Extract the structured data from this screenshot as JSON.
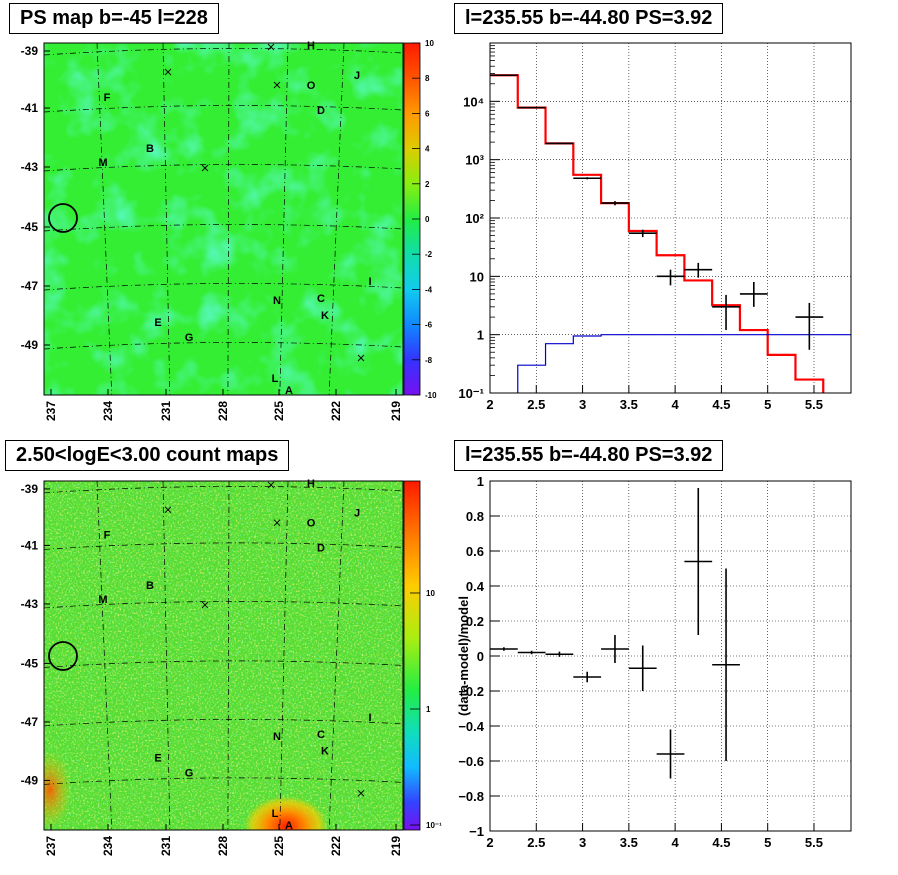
{
  "panels": {
    "ps_map_title": "PS map b=-45 l=228",
    "spectrum_title": "l=235.55 b=-44.80 PS=3.92",
    "count_map_title": "2.50<logE<3.00 count maps",
    "residual_title": "l=235.55 b=-44.80 PS=3.92"
  },
  "sky_map": {
    "lat_ticks": [
      "-39",
      "-41",
      "-43",
      "-45",
      "-47",
      "-49"
    ],
    "lon_ticks": [
      "237",
      "234",
      "231",
      "228",
      "225",
      "222",
      "219"
    ],
    "sources": [
      {
        "label": "H"
      },
      {
        "label": "J"
      },
      {
        "label": "O"
      },
      {
        "label": "D"
      },
      {
        "label": "F"
      },
      {
        "label": "B"
      },
      {
        "label": "M"
      },
      {
        "label": "I"
      },
      {
        "label": "N"
      },
      {
        "label": "C"
      },
      {
        "label": "K"
      },
      {
        "label": "E"
      },
      {
        "label": "G"
      },
      {
        "label": "L"
      },
      {
        "label": "A"
      }
    ],
    "crosses": 6,
    "colors": {
      "ps_background": "#33ee33",
      "counts_background": "#55dd33",
      "circle": "#000000"
    }
  },
  "ps_colorbar": {
    "ticks": [
      "10",
      "8",
      "6",
      "4",
      "2",
      "0",
      "-2",
      "-4",
      "-6",
      "-8",
      "-10"
    ]
  },
  "count_colorbar": {
    "ticks": [
      "10",
      "1",
      "10⁻¹"
    ]
  },
  "chart_data": [
    {
      "type": "line",
      "panel": "spectrum",
      "xlim": [
        2,
        5.9
      ],
      "ylim": [
        0.1,
        100000
      ],
      "yscale": "log",
      "grid": true,
      "x_ticks": [
        "2",
        "2.5",
        "3",
        "3.5",
        "4",
        "4.5",
        "5",
        "5.5"
      ],
      "y_ticks": [
        "10⁻¹",
        "1",
        "10",
        "10²",
        "10³",
        "10⁴"
      ],
      "series": [
        {
          "style": "data-points",
          "color": "#000000",
          "points": [
            {
              "x": 2.15,
              "y": 28000,
              "xerr": 0.15,
              "ylo": 27500,
              "yhi": 28500
            },
            {
              "x": 2.45,
              "y": 7800,
              "xerr": 0.15,
              "ylo": 7600,
              "yhi": 8000
            },
            {
              "x": 2.75,
              "y": 1900,
              "xerr": 0.15,
              "ylo": 1850,
              "yhi": 1950
            },
            {
              "x": 3.05,
              "y": 480,
              "xerr": 0.15,
              "ylo": 460,
              "yhi": 500
            },
            {
              "x": 3.35,
              "y": 180,
              "xerr": 0.15,
              "ylo": 165,
              "yhi": 195
            },
            {
              "x": 3.65,
              "y": 55,
              "xerr": 0.15,
              "ylo": 47,
              "yhi": 63
            },
            {
              "x": 3.95,
              "y": 10,
              "xerr": 0.15,
              "ylo": 7,
              "yhi": 13
            },
            {
              "x": 4.25,
              "y": 13,
              "xerr": 0.15,
              "ylo": 9.5,
              "yhi": 17
            },
            {
              "x": 4.55,
              "y": 3,
              "xerr": 0.15,
              "ylo": 1.2,
              "yhi": 4.8
            },
            {
              "x": 4.85,
              "y": 5,
              "xerr": 0.15,
              "ylo": 3,
              "yhi": 8
            },
            {
              "x": 5.45,
              "y": 2,
              "xerr": 0.15,
              "ylo": 0.55,
              "yhi": 3.5
            }
          ]
        },
        {
          "style": "step",
          "color": "#ff0000",
          "edges": [
            2.0,
            2.3,
            2.6,
            2.9,
            3.2,
            3.5,
            3.8,
            4.1,
            4.4,
            4.7,
            5.0,
            5.3,
            5.6,
            5.9
          ],
          "values": [
            28000,
            7800,
            1900,
            550,
            180,
            60,
            23,
            8.5,
            3.2,
            1.2,
            0.45,
            0.17,
            0.07
          ]
        },
        {
          "style": "step",
          "color": "#0000cc",
          "edges": [
            2.0,
            2.3,
            2.6,
            2.9,
            3.2,
            3.5,
            3.8,
            4.1,
            4.4,
            4.7,
            5.0,
            5.3,
            5.6,
            5.9
          ],
          "values": [
            0.02,
            0.3,
            0.7,
            0.95,
            1,
            1,
            1,
            1,
            1,
            1,
            1,
            1,
            1
          ]
        }
      ]
    },
    {
      "type": "scatter",
      "panel": "residual",
      "ylabel": "(data-model)/model",
      "xlim": [
        2,
        5.9
      ],
      "ylim": [
        -1,
        1
      ],
      "grid": true,
      "x_ticks": [
        "2",
        "2.5",
        "3",
        "3.5",
        "4",
        "4.5",
        "5",
        "5.5"
      ],
      "y_ticks": [
        "1",
        "0.8",
        "0.6",
        "0.4",
        "0.2",
        "0",
        "−0.2",
        "−0.4",
        "−0.6",
        "−0.8",
        "−1"
      ],
      "points": [
        {
          "x": 2.15,
          "y": 0.04,
          "xerr": 0.15,
          "yerr": 0.01
        },
        {
          "x": 2.45,
          "y": 0.02,
          "xerr": 0.15,
          "yerr": 0.01
        },
        {
          "x": 2.75,
          "y": 0.01,
          "xerr": 0.15,
          "yerr": 0.015
        },
        {
          "x": 3.05,
          "y": -0.12,
          "xerr": 0.15,
          "yerr": 0.03
        },
        {
          "x": 3.35,
          "y": 0.04,
          "xerr": 0.15,
          "yerr": 0.08
        },
        {
          "x": 3.65,
          "y": -0.07,
          "xerr": 0.15,
          "yerr": 0.13
        },
        {
          "x": 3.95,
          "y": -0.56,
          "xerr": 0.15,
          "yerr": 0.14
        },
        {
          "x": 4.25,
          "y": 0.54,
          "xerr": 0.15,
          "yerr": 0.42
        },
        {
          "x": 4.55,
          "y": -0.05,
          "xerr": 0.15,
          "yerr": 0.55
        }
      ]
    }
  ]
}
